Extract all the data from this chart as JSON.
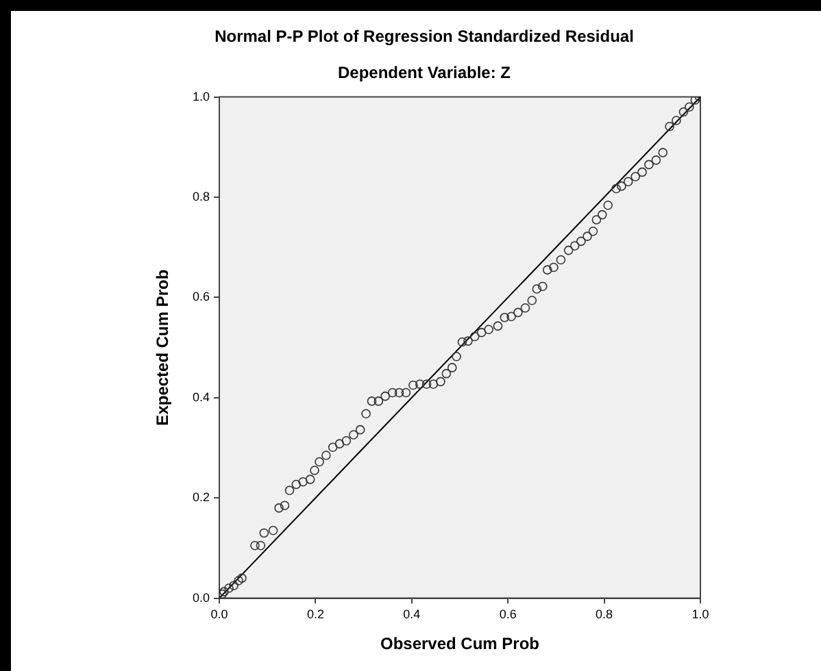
{
  "chart_data": {
    "type": "scatter",
    "title": "Normal P-P Plot of Regression Standardized Residual",
    "subtitle": "Dependent Variable: Z",
    "xlabel": "Observed Cum Prob",
    "ylabel": "Expected Cum Prob",
    "xlim": [
      0,
      1
    ],
    "ylim": [
      0,
      1
    ],
    "xticks": [
      {
        "value": 0,
        "label": "0.0"
      },
      {
        "value": 0.2,
        "label": "0.2"
      },
      {
        "value": 0.4,
        "label": "0.4"
      },
      {
        "value": 0.6,
        "label": "0.6"
      },
      {
        "value": 0.8,
        "label": "0.8"
      },
      {
        "value": 1,
        "label": "1.0"
      }
    ],
    "yticks": [
      {
        "value": 0,
        "label": "0.0"
      },
      {
        "value": 0.2,
        "label": "0.2"
      },
      {
        "value": 0.4,
        "label": "0.4"
      },
      {
        "value": 0.6,
        "label": "0.6"
      },
      {
        "value": 0.8,
        "label": "0.8"
      },
      {
        "value": 1,
        "label": "1.0"
      }
    ],
    "grid": false,
    "legend": false,
    "marker": "circle",
    "series": [
      {
        "color": "#333333",
        "x": [
          0.006,
          0.01,
          0.02,
          0.03,
          0.04,
          0.047,
          0.074,
          0.086,
          0.093,
          0.112,
          0.124,
          0.136,
          0.146,
          0.16,
          0.174,
          0.189,
          0.198,
          0.208,
          0.222,
          0.236,
          0.25,
          0.264,
          0.279,
          0.293,
          0.305,
          0.317,
          0.331,
          0.345,
          0.36,
          0.374,
          0.388,
          0.403,
          0.417,
          0.431,
          0.445,
          0.46,
          0.472,
          0.484,
          0.493,
          0.505,
          0.517,
          0.531,
          0.545,
          0.56,
          0.579,
          0.593,
          0.607,
          0.621,
          0.636,
          0.65,
          0.66,
          0.672,
          0.682,
          0.695,
          0.71,
          0.726,
          0.739,
          0.752,
          0.765,
          0.777,
          0.784,
          0.796,
          0.808,
          0.825,
          0.836,
          0.85,
          0.865,
          0.879,
          0.893,
          0.908,
          0.922,
          0.936,
          0.95,
          0.965,
          0.977,
          0.989,
          0.998
        ],
        "values": [
          0.008,
          0.013,
          0.02,
          0.025,
          0.035,
          0.04,
          0.105,
          0.105,
          0.13,
          0.135,
          0.18,
          0.185,
          0.215,
          0.227,
          0.232,
          0.237,
          0.255,
          0.272,
          0.285,
          0.301,
          0.308,
          0.314,
          0.326,
          0.336,
          0.368,
          0.393,
          0.393,
          0.403,
          0.41,
          0.41,
          0.41,
          0.425,
          0.427,
          0.427,
          0.427,
          0.432,
          0.448,
          0.46,
          0.482,
          0.511,
          0.513,
          0.522,
          0.53,
          0.536,
          0.543,
          0.56,
          0.562,
          0.57,
          0.579,
          0.594,
          0.617,
          0.622,
          0.655,
          0.66,
          0.675,
          0.694,
          0.703,
          0.712,
          0.722,
          0.732,
          0.755,
          0.765,
          0.784,
          0.817,
          0.822,
          0.831,
          0.841,
          0.85,
          0.865,
          0.874,
          0.889,
          0.941,
          0.953,
          0.97,
          0.98,
          0.994,
          1.0
        ]
      },
      {
        "type": "line",
        "color": "#000000",
        "marker": "none",
        "x": [
          0,
          1
        ],
        "values": [
          0,
          1
        ]
      }
    ]
  }
}
